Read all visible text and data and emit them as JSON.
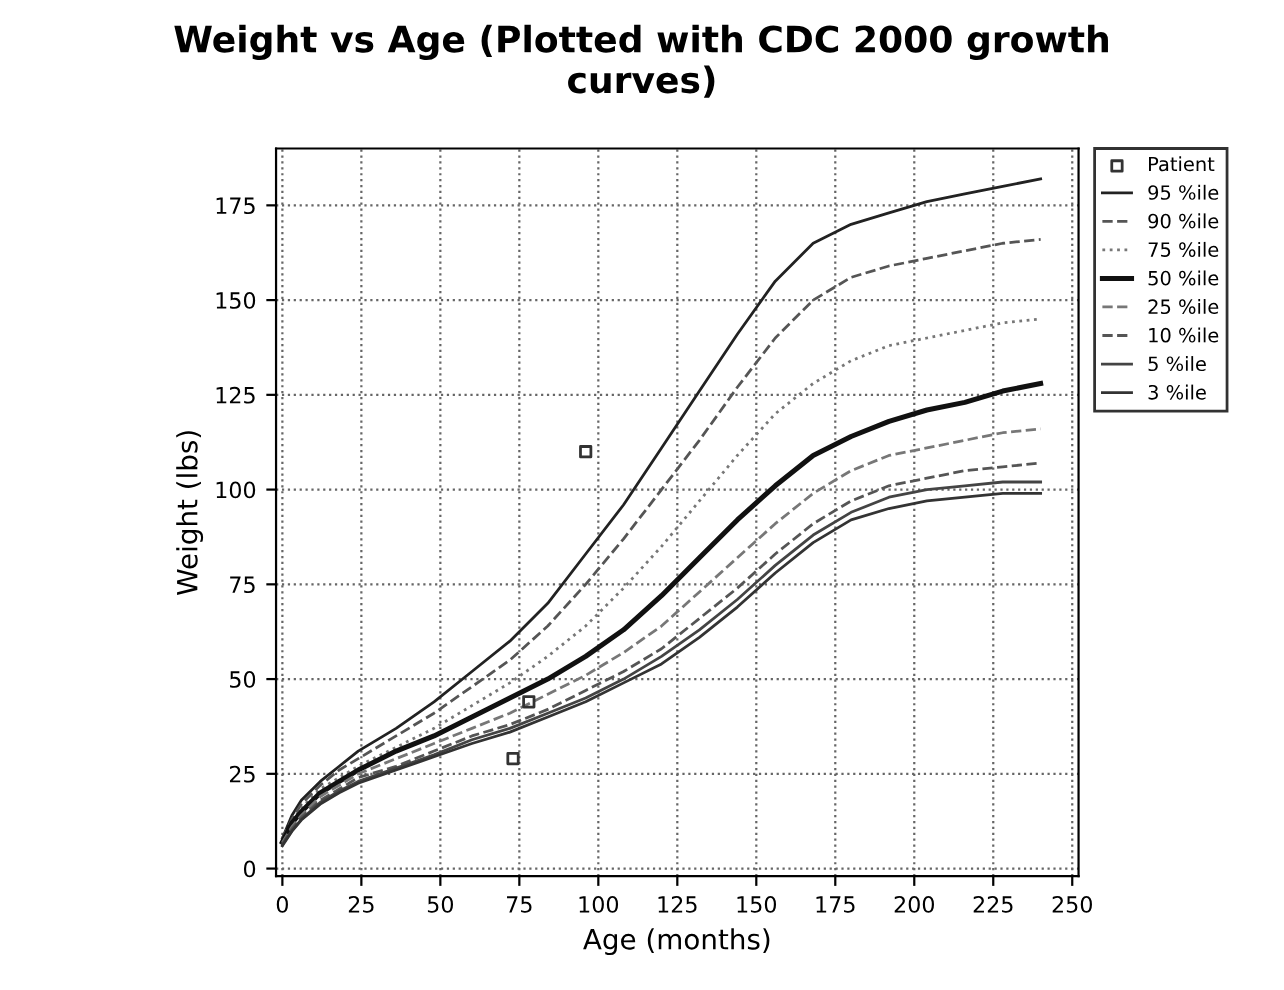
{
  "chart_data": {
    "type": "line",
    "title": "Weight vs Age (Plotted with CDC 2000 growth\ncurves)",
    "xlabel": "Age (months)",
    "ylabel": "Weight (lbs)",
    "xlim": [
      -2,
      252
    ],
    "ylim": [
      -2,
      190
    ],
    "xticks": [
      0,
      25,
      50,
      75,
      100,
      125,
      150,
      175,
      200,
      225,
      250
    ],
    "yticks": [
      0,
      25,
      50,
      75,
      100,
      125,
      150,
      175
    ],
    "grid": true,
    "legend": "top right",
    "x": [
      0,
      3,
      6,
      12,
      18,
      24,
      36,
      48,
      60,
      72,
      84,
      96,
      108,
      120,
      132,
      144,
      156,
      168,
      180,
      192,
      204,
      216,
      228,
      240
    ],
    "series": [
      {
        "name": "Patient",
        "type": "scatter",
        "marker": "square",
        "color": "#333333",
        "x": [
          96,
          78,
          73
        ],
        "values": [
          110,
          44,
          29
        ]
      },
      {
        "name": "95 %ile",
        "color": "#222222",
        "line_style": "solid",
        "values": [
          8,
          14,
          18,
          23,
          27,
          31,
          37,
          44,
          52,
          60,
          70,
          83,
          96,
          111,
          126,
          141,
          155,
          165,
          170,
          173,
          176,
          178,
          180,
          182
        ]
      },
      {
        "name": "90 %ile",
        "color": "#555555",
        "line_style": "dashed",
        "values": [
          8,
          13,
          17,
          22,
          26,
          29,
          35,
          41,
          48,
          55,
          64,
          75,
          87,
          100,
          113,
          127,
          140,
          150,
          156,
          159,
          161,
          163,
          165,
          166
        ]
      },
      {
        "name": "75 %ile",
        "color": "#777777",
        "line_style": "dotted",
        "values": [
          7.5,
          12.5,
          16,
          21,
          24,
          27,
          32,
          37,
          43,
          49,
          56,
          64,
          74,
          85,
          97,
          109,
          120,
          128,
          134,
          138,
          140,
          142,
          144,
          145
        ]
      },
      {
        "name": "50 %ile",
        "color": "#111111",
        "line_style": "solid",
        "values": [
          7,
          12,
          15,
          20,
          23,
          26,
          31,
          35,
          40,
          45,
          50,
          56,
          63,
          72,
          82,
          92,
          101,
          109,
          114,
          118,
          121,
          123,
          126,
          128
        ]
      },
      {
        "name": "25 %ile",
        "color": "#777777",
        "line_style": "dashed",
        "values": [
          6.8,
          11,
          14,
          19,
          22,
          25,
          29,
          33,
          37,
          41,
          46,
          51,
          57,
          64,
          73,
          82,
          91,
          99,
          105,
          109,
          111,
          113,
          115,
          116
        ]
      },
      {
        "name": "10 %ile",
        "color": "#555555",
        "line_style": "dashed",
        "values": [
          6.5,
          10.5,
          13.5,
          18,
          21,
          24,
          27,
          31,
          35,
          38,
          42,
          47,
          52,
          58,
          66,
          74,
          83,
          91,
          97,
          101,
          103,
          105,
          106,
          107
        ]
      },
      {
        "name": "5 %ile",
        "color": "#444444",
        "line_style": "solid",
        "values": [
          6.3,
          10,
          13,
          17.5,
          20.5,
          23,
          26.5,
          30,
          34,
          37,
          41,
          45,
          50,
          56,
          63,
          71,
          80,
          88,
          94,
          98,
          100,
          101,
          102,
          102
        ]
      },
      {
        "name": "3 %ile",
        "color": "#333333",
        "line_style": "solid",
        "values": [
          6,
          9.8,
          12.8,
          17,
          20,
          22.5,
          26,
          29.5,
          33,
          36,
          40,
          44,
          49,
          54,
          61,
          69,
          78,
          86,
          92,
          95,
          97,
          98,
          99,
          99
        ]
      }
    ]
  }
}
